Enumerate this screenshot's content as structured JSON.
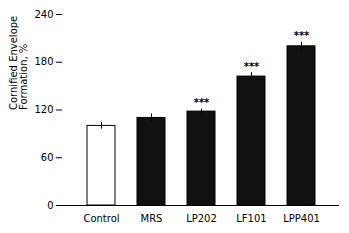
{
  "chart_data": {
    "type": "bar",
    "categories": [
      "Control",
      "MRS",
      "LP202",
      "LF101",
      "LPP401"
    ],
    "values": [
      100,
      110,
      118,
      162,
      200
    ],
    "errors": [
      4,
      5,
      3,
      5,
      5
    ],
    "colors": [
      "#ffffff",
      "#111111",
      "#111111",
      "#111111",
      "#111111"
    ],
    "significance": [
      null,
      null,
      "***",
      "***",
      "***"
    ],
    "ylabel": "Cornified Envelope\nFormation, %",
    "ylim": [
      0,
      240
    ],
    "yticks": [
      0,
      60,
      120,
      180,
      240
    ],
    "grid": false
  }
}
